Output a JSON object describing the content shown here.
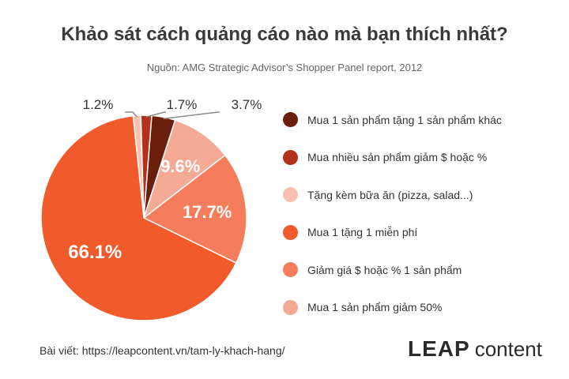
{
  "colors": {
    "title": "#3a3a3a",
    "accent": "#f15a2b"
  },
  "logo": {
    "wordmark": "LEAP",
    "suffix": "content"
  },
  "footer": {
    "text": "Bài viết: https://leapcontent.vn/tam-ly-khach-hang/"
  },
  "chart_data": {
    "type": "pie",
    "title": "Khảo sát cách quảng cáo nào mà bạn thích nhất?",
    "subtitle": "Nguồn: AMG Strategic Advisor’s Shopper Panel report, 2012",
    "legend_position": "right",
    "slices": [
      {
        "label": "Mua 1 sản phẩm tặng 1 sản phẩm khác",
        "value": 3.7,
        "value_label": "3.7%",
        "color": "#6b1e0c",
        "label_placement": "outside"
      },
      {
        "label": "Mua nhiều sản phẩm giảm $ hoặc %",
        "value": 1.7,
        "value_label": "1.7%",
        "color": "#b3311a",
        "label_placement": "outside"
      },
      {
        "label": "Tặng kèm bữa ăn (pizza, salad...)",
        "value": 1.2,
        "value_label": "1.2%",
        "color": "#f8c1b0",
        "label_placement": "outside"
      },
      {
        "label": "Mua 1 tặng 1 miễn phí",
        "value": 66.1,
        "value_label": "66.1%",
        "color": "#f15a2b",
        "label_placement": "inside"
      },
      {
        "label": "Giảm giá $ hoặc % 1 sản phẩm",
        "value": 17.7,
        "value_label": "17.7%",
        "color": "#f57d5c",
        "label_placement": "inside"
      },
      {
        "label": "Mua 1 sản phẩm giảm 50%",
        "value": 9.6,
        "value_label": "9.6%",
        "color": "#f4aa94",
        "label_placement": "inside"
      }
    ],
    "draw_order": [
      2,
      1,
      0,
      5,
      4,
      3
    ]
  }
}
